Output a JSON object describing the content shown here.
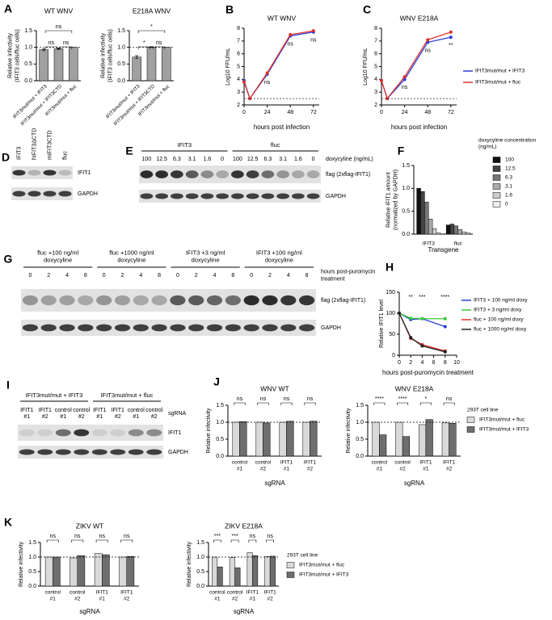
{
  "chart_data": [
    {
      "type": "bar",
      "panel": "A",
      "title": "WT WNV",
      "ylabel": [
        "Relative infectivity",
        "(IFIT3 cells/fluc cells)"
      ],
      "categories": [
        "IFIT3mut/mut + IFIT3",
        "IFIT3mut/mut + IFIT3CTD",
        "IFIT3mut/mut + fluc"
      ],
      "values": [
        0.93,
        0.96,
        1.0
      ],
      "errors": [
        0.03,
        0.02,
        0
      ],
      "color": "#a0a0a0",
      "ylim": [
        0,
        1.5
      ],
      "yticks": [
        {
          "value": 0,
          "label": "0.0"
        },
        0.5,
        {
          "value": 1,
          "label": "1.0"
        },
        1.5
      ],
      "hline": 1,
      "significance": [
        "ns",
        "ns",
        "ns"
      ]
    },
    {
      "type": "bar",
      "title": "E218A WNV",
      "ylabel": [
        "Relative infectivity",
        "(IFIT3 cells/fluc cells)"
      ],
      "categories": [
        "IFIT3mut/mut + IFIT3",
        "IFIT3mut/mut + IFIT3CTD",
        "IFIT3mut/mut + fluc"
      ],
      "values": [
        0.71,
        1.01,
        1.0
      ],
      "errors": [
        0.04,
        0.01,
        0
      ],
      "color": "#a0a0a0",
      "ylim": [
        0,
        1.5
      ],
      "yticks": [
        {
          "value": 0,
          "label": "0.0"
        },
        0.5,
        {
          "value": 1,
          "label": "1.0"
        },
        1.5
      ],
      "hline": 1,
      "significance": [
        "*",
        "ns",
        "*"
      ]
    },
    {
      "type": "line",
      "panel": "B",
      "title": "WT WNV",
      "xlabel": "hours post infection",
      "ylabel": "Log10 FFU/mL",
      "x": [
        0,
        6,
        24,
        48,
        72
      ],
      "xlim": [
        0,
        78
      ],
      "xticks": [
        0,
        24,
        48,
        72
      ],
      "ylim": [
        2,
        8
      ],
      "yticks": [
        2,
        3,
        4,
        5,
        6,
        7,
        8
      ],
      "hline": 2.5,
      "series": [
        {
          "color": "#2a3fd6",
          "values": [
            3.9,
            2.5,
            4.4,
            7.4,
            7.7
          ]
        },
        {
          "color": "#e0302a",
          "values": [
            3.8,
            2.5,
            4.5,
            7.5,
            7.8
          ]
        }
      ],
      "significance": [
        null,
        null,
        "ns",
        "ns",
        "ns"
      ]
    },
    {
      "type": "line",
      "panel": "C",
      "title": "WNV E218A",
      "xlabel": "hours post infection",
      "ylabel": "Log10 FFU/mL",
      "x": [
        0,
        6,
        24,
        48,
        72
      ],
      "xlim": [
        0,
        78
      ],
      "xticks": [
        0,
        24,
        48,
        72
      ],
      "ylim": [
        2,
        8
      ],
      "yticks": [
        2,
        3,
        4,
        5,
        6,
        7,
        8
      ],
      "hline": 2.5,
      "series": [
        {
          "name": "IFIT3mut/mut + IFIT3",
          "color": "#2a3fd6",
          "values": [
            3.9,
            2.5,
            4.0,
            6.9,
            7.3
          ]
        },
        {
          "name": "IFIT3mut/mut + fluc",
          "color": "#e0302a",
          "values": [
            3.9,
            2.5,
            4.2,
            7.1,
            7.7
          ]
        }
      ],
      "significance": [
        null,
        null,
        "ns",
        "ns",
        "**"
      ]
    },
    {
      "type": "bar",
      "panel": "F",
      "xlabel": "Transgene",
      "ylabel": [
        "Relative IFIT1 amount",
        "(normalized by GAPDH)"
      ],
      "categories": [
        "IFIT3",
        "fluc"
      ],
      "ylim": [
        0,
        1.5
      ],
      "yticks": [
        {
          "value": 0,
          "label": "0.0"
        },
        0.5,
        {
          "value": 1,
          "label": "1.0"
        },
        1.5
      ],
      "legend_title": [
        "doxycyline concentration",
        "(ng/mL)"
      ],
      "series": [
        {
          "name": "100",
          "color": "#111111",
          "values": [
            1.0,
            0.2
          ]
        },
        {
          "name": "12.5",
          "color": "#444444",
          "values": [
            0.93,
            0.22
          ]
        },
        {
          "name": "6.3",
          "color": "#777777",
          "values": [
            0.7,
            0.18
          ]
        },
        {
          "name": "3.1",
          "color": "#aaaaaa",
          "values": [
            0.33,
            0.1
          ]
        },
        {
          "name": "1.6",
          "color": "#cccccc",
          "values": [
            0.12,
            0.05
          ]
        },
        {
          "name": "0",
          "color": "#eeeeee",
          "values": [
            0.03,
            0.03
          ]
        }
      ]
    },
    {
      "type": "line",
      "panel": "H",
      "xlabel": "hours post-puromycin treatment",
      "ylabel": "Relative IFIT1 level",
      "x": [
        0,
        2,
        4,
        8
      ],
      "xlim": [
        0,
        10
      ],
      "xticks": [
        0,
        2,
        4,
        6,
        8,
        10
      ],
      "ylim": [
        0,
        150
      ],
      "yticks": [
        0,
        50,
        100,
        150
      ],
      "series": [
        {
          "name": "IFIT3 + 100 ng/ml doxy",
          "color": "#2a3fd6",
          "values": [
            100,
            85,
            87,
            68
          ]
        },
        {
          "name": "IFIT3 + 3 ng/ml doxy",
          "color": "#38c838",
          "values": [
            100,
            88,
            87,
            87
          ]
        },
        {
          "name": "fluc + 100 ng/ml doxy",
          "color": "#e0302a",
          "values": [
            100,
            40,
            25,
            10
          ]
        },
        {
          "name": "fluc + 1000 ng/ml doxy",
          "color": "#222222",
          "values": [
            100,
            42,
            22,
            8
          ]
        }
      ],
      "significance": [
        null,
        "**",
        "***",
        "****"
      ]
    },
    {
      "type": "bar",
      "panel": "J",
      "title": "WNV WT",
      "xlabel": "sgRNA",
      "ylabel": "Relative infectivity",
      "categories": [
        [
          "control",
          "#1"
        ],
        [
          "control",
          "#2"
        ],
        [
          "IFIT1",
          "#1"
        ],
        [
          "IFIT1",
          "#2"
        ]
      ],
      "ylim": [
        0,
        1.5
      ],
      "yticks": [
        {
          "value": 0,
          "label": "0.0"
        },
        0.5,
        {
          "value": 1,
          "label": "1.0"
        },
        1.5
      ],
      "hline": 1,
      "series": [
        {
          "color": "#d9d9d9",
          "values": [
            1.0,
            1.0,
            1.0,
            1.0
          ]
        },
        {
          "color": "#6e6e6e",
          "values": [
            1.02,
            0.98,
            1.03,
            1.03
          ]
        }
      ],
      "significance": [
        "ns",
        "ns",
        "ns",
        "ns"
      ]
    },
    {
      "type": "bar",
      "title": "WNV E218A",
      "xlabel": "sgRNA",
      "ylabel": "Relative infectivity",
      "categories": [
        [
          "control",
          "#1"
        ],
        [
          "control",
          "#2"
        ],
        [
          "IFIT1",
          "#1"
        ],
        [
          "IFIT1",
          "#2"
        ]
      ],
      "ylim": [
        0,
        1.5
      ],
      "yticks": [
        {
          "value": 0,
          "label": "0.0"
        },
        0.5,
        {
          "value": 1,
          "label": "1.0"
        },
        1.5
      ],
      "hline": 1,
      "legend_title": "293T cell line",
      "series": [
        {
          "name": "IFIT3mut/mut + fluc",
          "color": "#d9d9d9",
          "values": [
            1.0,
            1.0,
            0.93,
            0.98
          ]
        },
        {
          "name": "IFIT3mut/mut + IFIT3",
          "color": "#6e6e6e",
          "values": [
            0.63,
            0.58,
            1.08,
            0.97
          ]
        }
      ],
      "significance": [
        "****",
        "****",
        "*",
        "ns"
      ]
    },
    {
      "type": "bar",
      "panel": "K",
      "title": "ZIKV WT",
      "xlabel": "sgRNA",
      "ylabel": "Relative infectivity",
      "categories": [
        [
          "control",
          "#1"
        ],
        [
          "control",
          "#2"
        ],
        [
          "IFIT1",
          "#1"
        ],
        [
          "IFIT1",
          "#2"
        ]
      ],
      "ylim": [
        0,
        1.5
      ],
      "yticks": [
        {
          "value": 0,
          "label": "0.0"
        },
        0.5,
        {
          "value": 1,
          "label": "1.0"
        },
        1.5
      ],
      "hline": 1,
      "series": [
        {
          "color": "#d9d9d9",
          "values": [
            1.0,
            0.97,
            1.12,
            1.0
          ]
        },
        {
          "color": "#6e6e6e",
          "values": [
            1.0,
            1.05,
            1.08,
            1.02
          ]
        }
      ],
      "significance": [
        "ns",
        "ns",
        "ns",
        "ns"
      ]
    },
    {
      "type": "bar",
      "title": "ZIKV E218A",
      "xlabel": "sgRNA",
      "ylabel": "Relative infectivity",
      "categories": [
        [
          "control",
          "#1"
        ],
        [
          "control",
          "#2"
        ],
        [
          "IFIT1",
          "#1"
        ],
        [
          "IFIT1",
          "#2"
        ]
      ],
      "ylim": [
        0,
        1.5
      ],
      "yticks": [
        {
          "value": 0,
          "label": "0.0"
        },
        0.5,
        {
          "value": 1,
          "label": "1.0"
        },
        1.5
      ],
      "hline": 1,
      "legend_title": "293T cell line",
      "series": [
        {
          "name": "IFIT3mut/mut + fluc",
          "color": "#d9d9d9",
          "values": [
            1.0,
            0.98,
            1.15,
            1.02
          ]
        },
        {
          "name": "IFIT3mut/mut + IFIT3",
          "color": "#6e6e6e",
          "values": [
            0.66,
            0.63,
            1.05,
            1.03
          ]
        }
      ],
      "significance": [
        "***",
        "***",
        "ns",
        "ns"
      ]
    }
  ],
  "blots": [
    {
      "panel": "D",
      "lanes": [
        "IFIT3",
        "hIFIT3ΔCTD",
        "mIFIT3CTD",
        "fluc"
      ],
      "rows": [
        "IFIT1",
        "GAPDH"
      ]
    },
    {
      "panel": "E",
      "groups": [
        "IFIT3",
        "fluc"
      ],
      "lanes": [
        "100",
        "12.5",
        "6.3",
        "3.1",
        "1.6",
        "0",
        "100",
        "12.5",
        "6.3",
        "3.1",
        "1.6",
        "0"
      ],
      "lane_title": "doxycyline (ng/mL)",
      "rows": [
        "flag (2xflag-IFIT1)",
        "GAPDH"
      ]
    },
    {
      "panel": "G",
      "groups": [
        [
          "fluc +100 ng/ml",
          "doxycyline"
        ],
        [
          "fluc +1000 ng/ml",
          "doxycyline"
        ],
        [
          "IFIT3 +3 ng/ml",
          "doxycyline"
        ],
        [
          "IFIT3 +100 ng/ml",
          "doxycyline"
        ]
      ],
      "lanes": [
        "0",
        "2",
        "4",
        "8",
        "0",
        "2",
        "4",
        "8",
        "0",
        "2",
        "4",
        "8",
        "0",
        "2",
        "4",
        "8"
      ],
      "lane_title": [
        "hours post-puromycin",
        "treatment"
      ],
      "rows": [
        "flag (2xflag-IFIT1)",
        "GAPDH"
      ]
    },
    {
      "panel": "I",
      "groups": [
        "IFIT3mut/mut + IFIT3",
        "IFIT3mut/mut + fluc"
      ],
      "lanes": [
        [
          "IFIT1",
          "#1"
        ],
        [
          "IFIT1",
          "#2"
        ],
        [
          "control",
          "#1"
        ],
        [
          "control",
          "#2"
        ],
        [
          "IFIT1",
          "#1"
        ],
        [
          "IFIT1",
          "#2"
        ],
        [
          "control",
          "#1"
        ],
        [
          "control",
          "#2"
        ]
      ],
      "lane_title": "sgRNA",
      "rows": [
        "IFIT1",
        "GAPDH"
      ]
    }
  ]
}
